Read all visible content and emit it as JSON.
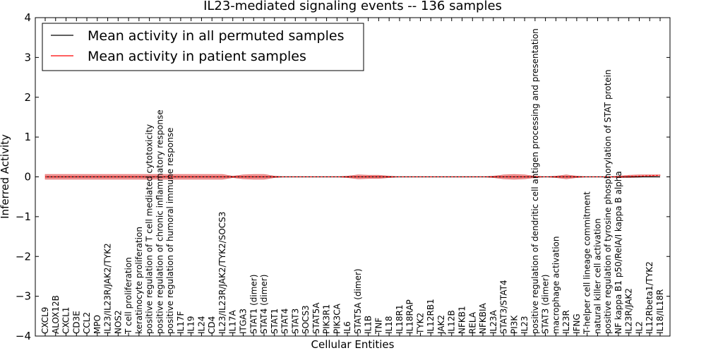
{
  "chart_data": {
    "type": "line",
    "title": "IL23-mediated signaling events -- 136 samples",
    "xlabel": "Cellular Entities",
    "ylabel": "Inferred Activity",
    "ylim": [
      -4,
      4
    ],
    "yticks": [
      -4,
      -3,
      -2,
      -1,
      0,
      1,
      2,
      3,
      4
    ],
    "ytick_labels": [
      "−4",
      "−3",
      "−2",
      "−1",
      "0",
      "1",
      "2",
      "3",
      "4"
    ],
    "legend": {
      "placement": "top-left",
      "entries": [
        {
          "label": "Mean activity in all permuted samples",
          "color": "#000000"
        },
        {
          "label": "Mean activity in patient samples",
          "color": "#ff0000"
        }
      ]
    },
    "categories": [
      "CXCL9",
      "ALOX12B",
      "CXCL1",
      "CD3E",
      "CCL2",
      "MPO",
      "IL23/IL23R/JAK2/TYK2",
      "NOS2",
      "T cell proliferation",
      "keratinocyte proliferation",
      "positive regulation of T cell mediated cytotoxicity",
      "positive regulation of chronic inflammatory response",
      "positive regulation of humoral immune response",
      "IL17F",
      "IL19",
      "IL24",
      "CD4",
      "IL23/IL23R/JAK2/TYK2/SOCS3",
      "IL17A",
      "ITGA3",
      "STAT1 (dimer)",
      "STAT4 (dimer)",
      "STAT1",
      "STAT4",
      "STAT3",
      "SOCS3",
      "STAT5A",
      "PIK3R1",
      "PIK3CA",
      "IL6",
      "STAT5A (dimer)",
      "IL1B",
      "TNF",
      "IL18",
      "IL18R1",
      "IL18RAP",
      "TYK2",
      "IL12RB1",
      "JAK2",
      "IL12B",
      "NFKB1",
      "RELA",
      "NFKBIA",
      "IL23A",
      "STAT3/STAT4",
      "PI3K",
      "IL23",
      "positive regulation of dendritic cell antigen processing and presentation",
      "STAT3 (dimer)",
      "macrophage activation",
      "IL23R",
      "IFNG",
      "T-helper cell lineage commitment",
      "natural killer cell activation",
      "positive regulation of tyrosine phosphorylation of STAT protein",
      "NF kappa B1 p50/RelA/I kappa B alpha",
      "IL23R/JAK2",
      "IL2",
      "IL12Rbeta1/TYK2",
      "IL18/IL18R"
    ],
    "series": [
      {
        "name": "Mean activity in all permuted samples",
        "color": "#000000",
        "values": [
          0,
          0,
          0,
          0,
          0,
          0,
          0,
          0,
          0,
          0,
          0,
          0,
          0,
          0,
          0,
          0,
          0,
          0,
          0,
          0,
          0,
          0,
          0,
          0,
          0,
          0,
          0,
          0,
          0,
          0,
          0,
          0,
          0,
          0,
          0,
          0,
          0,
          0,
          0,
          0,
          0,
          0,
          0,
          0,
          0,
          0,
          0,
          0,
          0,
          0,
          0,
          0,
          0,
          0,
          0,
          0,
          0,
          0,
          0,
          0
        ]
      },
      {
        "name": "Mean activity in patient samples",
        "color": "#ff0000",
        "values": [
          0,
          0,
          0,
          0,
          0,
          0,
          0,
          0,
          0,
          0,
          0,
          0,
          0,
          0,
          0,
          0,
          0,
          0,
          0,
          0,
          0,
          0,
          0,
          0,
          0,
          0,
          0,
          0,
          0,
          0,
          0,
          0,
          0,
          0,
          0,
          0,
          0,
          0,
          0,
          0,
          0,
          0,
          0,
          0,
          0,
          0,
          0,
          0,
          0,
          0,
          0,
          0,
          0,
          0,
          0,
          0,
          0.01,
          0.02,
          0.03,
          0.04
        ]
      }
    ],
    "band": {
      "name": "patient spread",
      "color": "#f08080",
      "half_width": [
        0.06,
        0.06,
        0.06,
        0.06,
        0.06,
        0.06,
        0.06,
        0.06,
        0.06,
        0.06,
        0.06,
        0.06,
        0.06,
        0.06,
        0.06,
        0.06,
        0.06,
        0.06,
        0.02,
        0.05,
        0.06,
        0.06,
        0.02,
        0,
        0,
        0,
        0,
        0,
        0,
        0.02,
        0.05,
        0.04,
        0.04,
        0.02,
        0,
        0,
        0,
        0,
        0,
        0,
        0,
        0,
        0,
        0.02,
        0.05,
        0.06,
        0.05,
        0.02,
        0,
        0.02,
        0.05,
        0.02,
        0,
        0,
        0,
        0.02,
        0.03,
        0.03,
        0.02,
        0.01
      ]
    }
  }
}
